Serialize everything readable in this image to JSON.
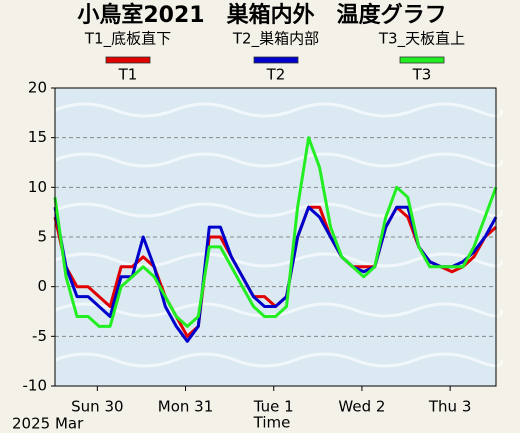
{
  "chart_data": {
    "type": "line",
    "title": "小鳥室2021　巣箱内外　温度グラフ",
    "x_label": "Time",
    "x_sublabel": "2025 Mar",
    "x": [
      -0.48,
      -0.355,
      -0.23,
      -0.105,
      0.02,
      0.145,
      0.27,
      0.395,
      0.52,
      0.645,
      0.77,
      0.895,
      1.02,
      1.145,
      1.27,
      1.395,
      1.52,
      1.645,
      1.77,
      1.895,
      2.02,
      2.145,
      2.27,
      2.395,
      2.52,
      2.645,
      2.77,
      2.895,
      3.02,
      3.145,
      3.27,
      3.395,
      3.52,
      3.645,
      3.77,
      3.895,
      4.02,
      4.145,
      4.27,
      4.395,
      4.52
    ],
    "series": [
      {
        "name": "T1",
        "description": "T1_底板直下",
        "color": "#e00000",
        "values": [
          7,
          2,
          0,
          0,
          -1,
          -2,
          2,
          2,
          3,
          2,
          -1,
          -3,
          -5,
          -4,
          5,
          5,
          3,
          1,
          -1,
          -1,
          -2,
          -1,
          5,
          8,
          8,
          5,
          3,
          2,
          2,
          2,
          6,
          8,
          7,
          4,
          2.5,
          2,
          1.5,
          2,
          3,
          5,
          6
        ]
      },
      {
        "name": "T2",
        "description": "T2_巣箱内部",
        "color": "#0000cc",
        "values": [
          8,
          2,
          -1,
          -1,
          -2,
          -3,
          1,
          1,
          5,
          2,
          -2,
          -4,
          -5.5,
          -4,
          6,
          6,
          3,
          1,
          -1,
          -2,
          -2,
          -1,
          5,
          8,
          7,
          5,
          3,
          2,
          1.5,
          2,
          6,
          8,
          8,
          4,
          2.5,
          2,
          2,
          2.5,
          3.5,
          5,
          7
        ]
      },
      {
        "name": "T3",
        "description": "T3_天板直上",
        "color": "#22ee22",
        "values": [
          9,
          1,
          -3,
          -3,
          -4,
          -4,
          0,
          1,
          2,
          1,
          -1,
          -3,
          -4,
          -3,
          4,
          4,
          2,
          0,
          -2,
          -3,
          -3,
          -2,
          8,
          15,
          12,
          6,
          3,
          2,
          1,
          2,
          7,
          10,
          9,
          4,
          2,
          2,
          2,
          2,
          4,
          7,
          10
        ]
      }
    ],
    "xlim": [
      -0.48,
      4.52
    ],
    "xticks": [
      {
        "value": 0,
        "label": "Sun 30"
      },
      {
        "value": 1,
        "label": "Mon 31"
      },
      {
        "value": 2,
        "label": "Tue 1"
      },
      {
        "value": 3,
        "label": "Wed 2"
      },
      {
        "value": 4,
        "label": "Thu 3"
      }
    ],
    "ylim": [
      -10,
      20
    ],
    "yticks": [
      -10,
      -5,
      0,
      5,
      10,
      15,
      20
    ],
    "grid": true
  }
}
